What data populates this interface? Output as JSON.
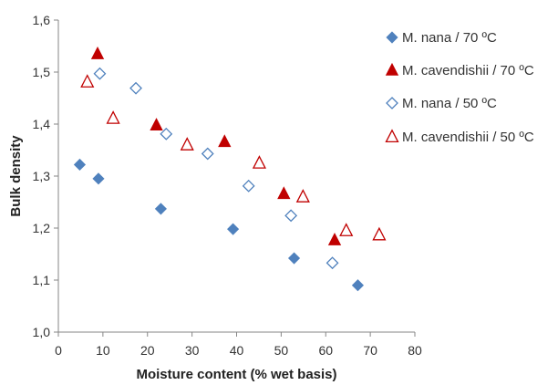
{
  "chart_data": {
    "type": "scatter",
    "title": "",
    "xlabel": "Moisture content (% wet basis)",
    "ylabel": "Bulk density",
    "xlim": [
      0,
      80
    ],
    "ylim": [
      1.0,
      1.6
    ],
    "x_ticks": [
      0,
      10,
      20,
      30,
      40,
      50,
      60,
      70,
      80
    ],
    "x_tick_labels": [
      "0",
      "10",
      "20",
      "30",
      "40",
      "50",
      "60",
      "70",
      "80"
    ],
    "y_ticks": [
      1.0,
      1.1,
      1.2,
      1.3,
      1.4,
      1.5,
      1.6
    ],
    "y_tick_labels": [
      "1,0",
      "1,1",
      "1,2",
      "1,3",
      "1,4",
      "1,5",
      "1,6"
    ],
    "grid": false,
    "legend_position": "right",
    "series": [
      {
        "name": "M. nana / 70 ºC",
        "marker": "diamond",
        "filled": true,
        "color": "#4f81bd",
        "points": [
          [
            4.8,
            1.322
          ],
          [
            9.0,
            1.295
          ],
          [
            23.0,
            1.237
          ],
          [
            39.2,
            1.198
          ],
          [
            52.9,
            1.142
          ],
          [
            67.2,
            1.09
          ]
        ]
      },
      {
        "name": "M. cavendishii / 70 ºC",
        "marker": "triangle",
        "filled": true,
        "color": "#c00000",
        "points": [
          [
            8.8,
            1.535
          ],
          [
            22.0,
            1.398
          ],
          [
            37.3,
            1.366
          ],
          [
            50.6,
            1.266
          ],
          [
            62.0,
            1.177
          ]
        ]
      },
      {
        "name": "M. nana / 50 ºC",
        "marker": "diamond",
        "filled": false,
        "color": "#4f81bd",
        "points": [
          [
            9.3,
            1.497
          ],
          [
            17.4,
            1.469
          ],
          [
            24.2,
            1.381
          ],
          [
            33.5,
            1.343
          ],
          [
            42.7,
            1.281
          ],
          [
            52.2,
            1.224
          ],
          [
            61.5,
            1.133
          ]
        ]
      },
      {
        "name": "M. cavendishii / 50 ºC",
        "marker": "triangle",
        "filled": false,
        "color": "#c00000",
        "points": [
          [
            6.5,
            1.481
          ],
          [
            12.3,
            1.411
          ],
          [
            28.9,
            1.36
          ],
          [
            45.1,
            1.325
          ],
          [
            54.9,
            1.26
          ],
          [
            64.6,
            1.195
          ],
          [
            72.0,
            1.187
          ]
        ]
      }
    ]
  }
}
